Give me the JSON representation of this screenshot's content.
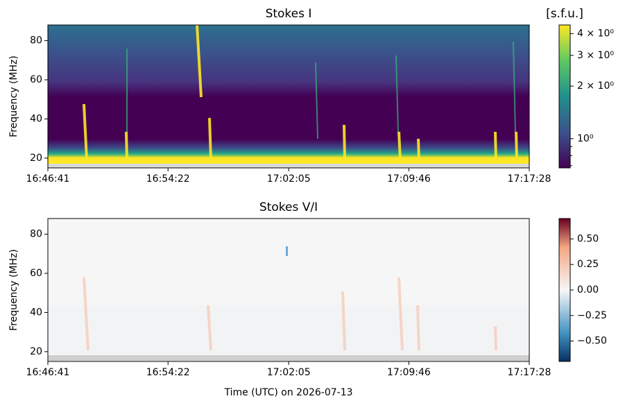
{
  "chart_data": [
    {
      "type": "spectrogram",
      "title": "Stokes I",
      "ylabel": "Frequency (MHz)",
      "xlim": [
        "16:46:41",
        "17:17:28"
      ],
      "xticks": [
        "16:46:41",
        "16:54:22",
        "17:02:05",
        "17:09:46",
        "17:17:28"
      ],
      "ylim": [
        15,
        88
      ],
      "yticks": [
        20,
        40,
        60,
        80
      ],
      "colorbar": {
        "label": "[s.f.u.]",
        "colormap": "viridis",
        "log": true,
        "clim": [
          0.68,
          4.48
        ],
        "ticks": [
          {
            "value": 1,
            "label": "10⁰"
          },
          {
            "value": 2,
            "label": "2 × 10⁰"
          },
          {
            "value": 3,
            "label": "3 × 10⁰"
          },
          {
            "value": 4,
            "label": "4 × 10⁰"
          }
        ],
        "minor_ticks": [
          0.7,
          0.8,
          0.9
        ]
      }
    },
    {
      "type": "spectrogram",
      "title": "Stokes V/I",
      "ylabel": "Frequency (MHz)",
      "xlabel": "Time (UTC) on 2026-07-13",
      "xlim": [
        "16:46:41",
        "17:17:28"
      ],
      "xticks": [
        "16:46:41",
        "16:54:22",
        "17:02:05",
        "17:09:46",
        "17:17:28"
      ],
      "ylim": [
        15,
        88
      ],
      "yticks": [
        20,
        40,
        60,
        80
      ],
      "colorbar": {
        "colormap": "RdBu_r",
        "log": false,
        "clim": [
          -0.7,
          0.7
        ],
        "ticks": [
          {
            "value": -0.5,
            "label": "−0.50"
          },
          {
            "value": -0.25,
            "label": "−0.25"
          },
          {
            "value": 0,
            "label": "0.00"
          },
          {
            "value": 0.25,
            "label": "0.25"
          },
          {
            "value": 0.5,
            "label": "0.50"
          }
        ]
      }
    }
  ]
}
